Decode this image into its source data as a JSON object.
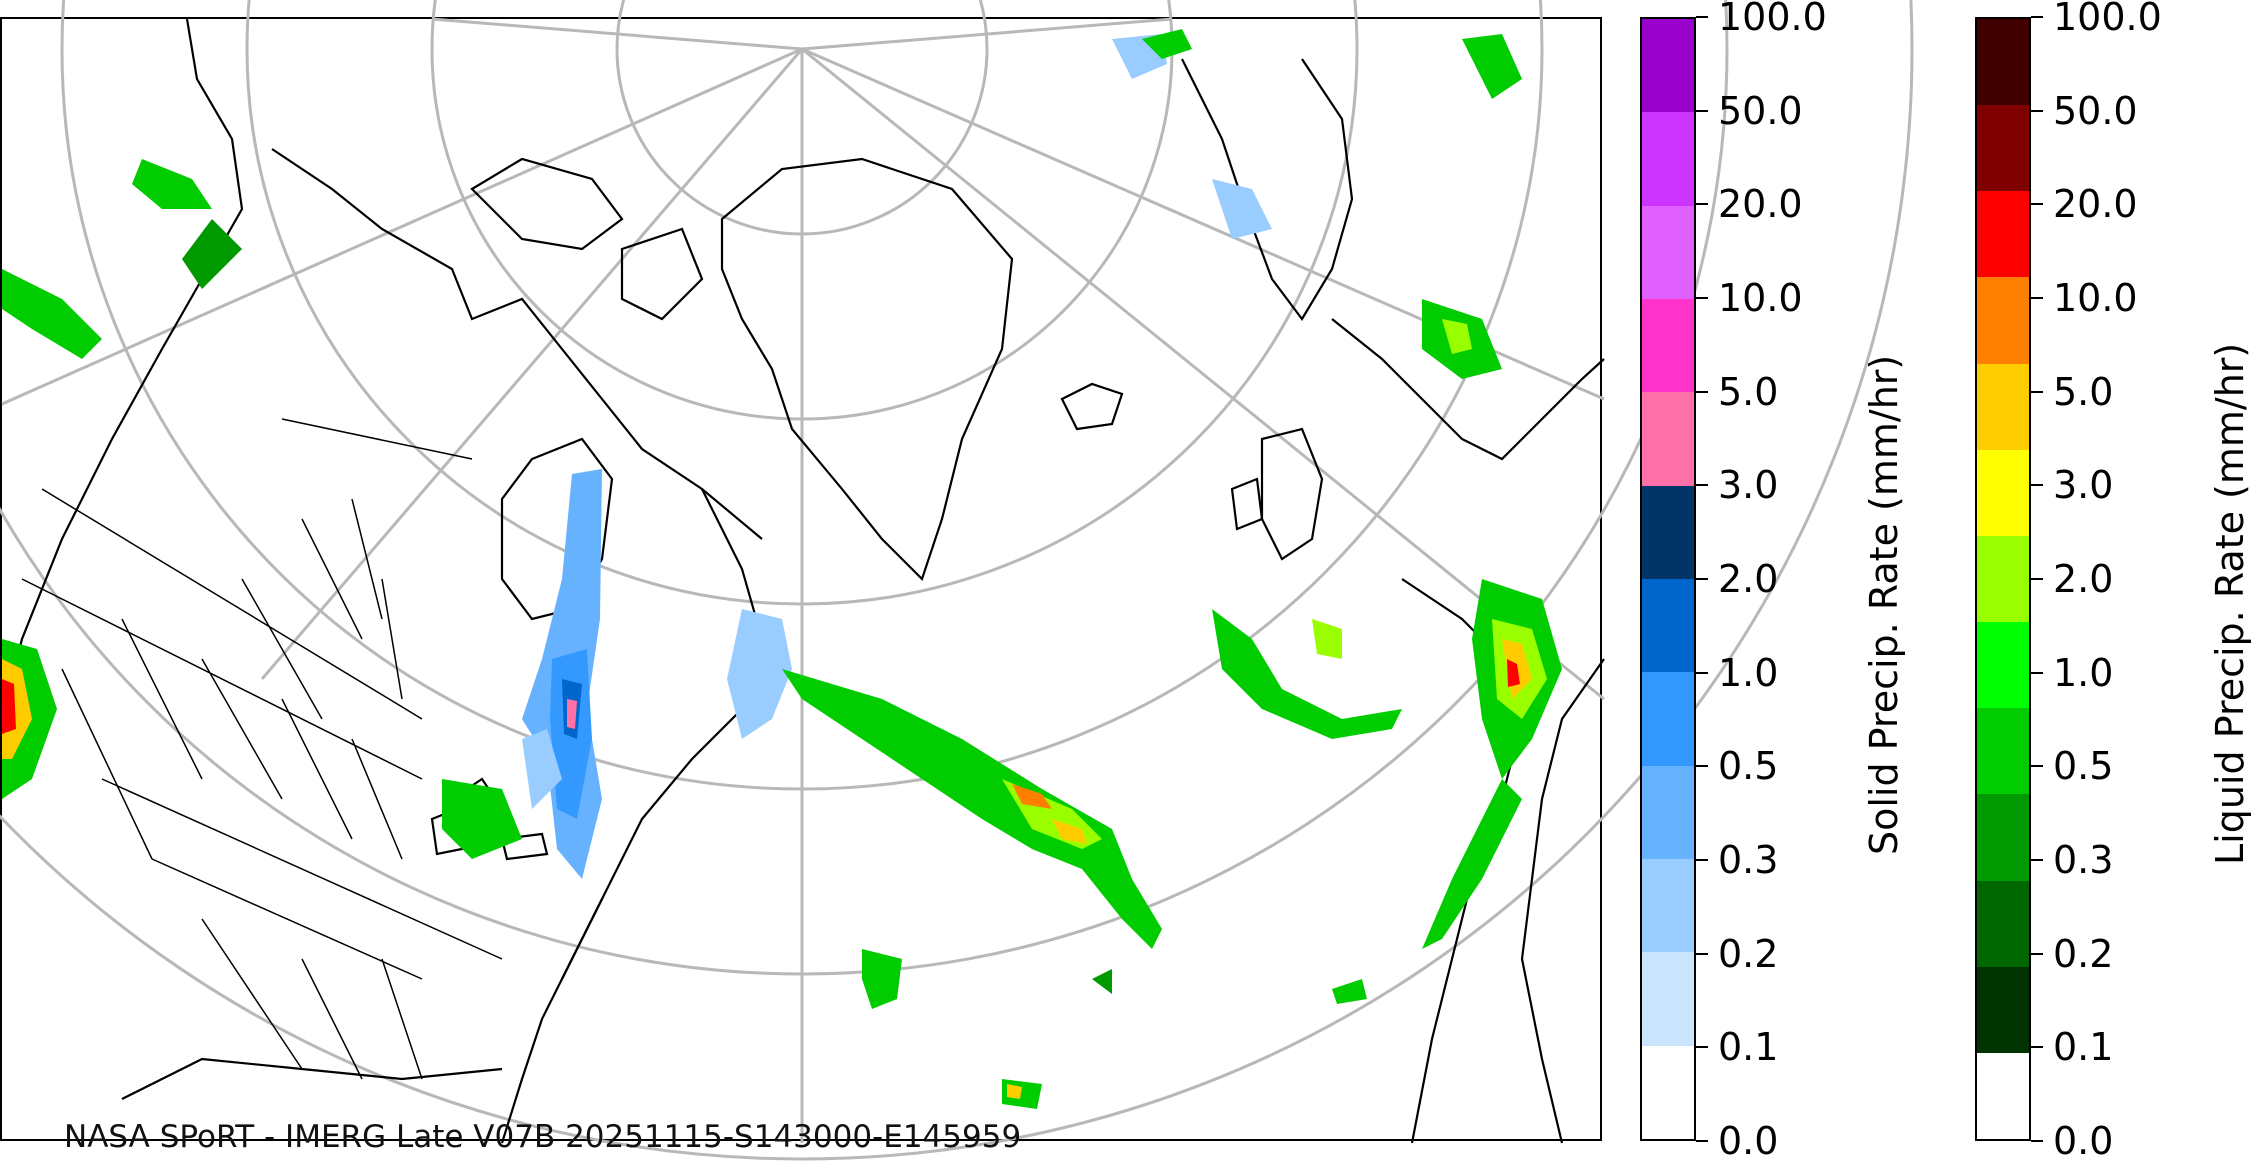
{
  "credit": "NASA SPoRT - IMERG Late V07B 20251115-S143000-E145959",
  "solid_colorbar": {
    "title": "Solid Precip. Rate (mm/hr)",
    "ticks": [
      "0.0",
      "0.1",
      "0.2",
      "0.3",
      "0.5",
      "1.0",
      "2.0",
      "3.0",
      "5.0",
      "10.0",
      "20.0",
      "50.0",
      "100.0"
    ],
    "colors": [
      "#ffffff",
      "#cce5ff",
      "#99ccff",
      "#66b2ff",
      "#3399ff",
      "#0066cc",
      "#003366",
      "#ff6fa8",
      "#ff33cc",
      "#e060ff",
      "#cc33ff",
      "#9900cc"
    ]
  },
  "liquid_colorbar": {
    "title": "Liquid Precip. Rate (mm/hr)",
    "ticks": [
      "0.0",
      "0.1",
      "0.2",
      "0.3",
      "0.5",
      "1.0",
      "2.0",
      "3.0",
      "5.0",
      "10.0",
      "20.0",
      "50.0",
      "100.0"
    ],
    "colors": [
      "#ffffff",
      "#003300",
      "#006600",
      "#009900",
      "#00cc00",
      "#00ff00",
      "#99ff00",
      "#ffff00",
      "#ffcc00",
      "#ff8000",
      "#ff0000",
      "#800000",
      "#400000"
    ]
  }
}
